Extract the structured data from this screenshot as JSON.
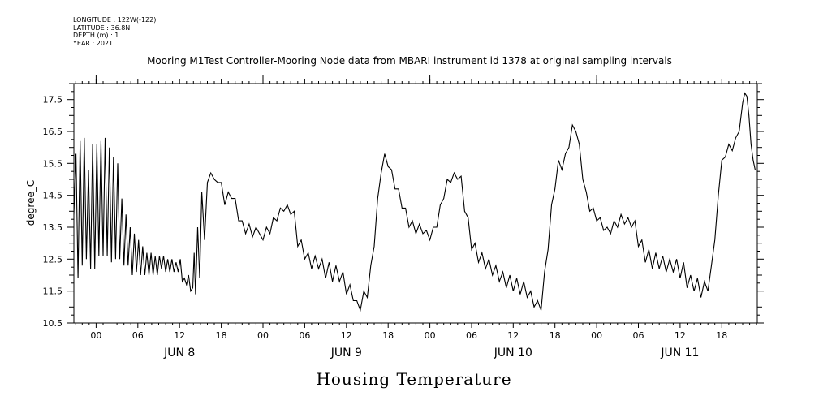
{
  "meta": {
    "longitude": "LONGITUDE : 122W(-122)",
    "latitude": "LATITUDE : 36.8N",
    "depth": "DEPTH (m) : 1",
    "year": "YEAR : 2021"
  },
  "footer_title": "Housing Temperature",
  "chart_data": {
    "type": "line",
    "title": "Mooring M1Test Controller-Mooring Node data from MBARI instrument id 1378 at original sampling intervals",
    "ylabel": "degree_C",
    "xlabel": "",
    "xlim_hours": [
      -3.2,
      95.1
    ],
    "ylim": [
      10.5,
      18.0
    ],
    "y_ticks": [
      10.5,
      11.5,
      12.5,
      13.5,
      14.5,
      15.5,
      16.5,
      17.5
    ],
    "x_ticks": [
      {
        "h": 0,
        "label": "00"
      },
      {
        "h": 6,
        "label": "06"
      },
      {
        "h": 12,
        "label": "12"
      },
      {
        "h": 18,
        "label": "18"
      },
      {
        "h": 24,
        "label": "00"
      },
      {
        "h": 30,
        "label": "06"
      },
      {
        "h": 36,
        "label": "12"
      },
      {
        "h": 42,
        "label": "18"
      },
      {
        "h": 48,
        "label": "00"
      },
      {
        "h": 54,
        "label": "06"
      },
      {
        "h": 60,
        "label": "12"
      },
      {
        "h": 66,
        "label": "18"
      },
      {
        "h": 72,
        "label": "00"
      },
      {
        "h": 78,
        "label": "06"
      },
      {
        "h": 84,
        "label": "12"
      },
      {
        "h": 90,
        "label": "18"
      }
    ],
    "day_labels": [
      {
        "h": 12,
        "label": "JUN  8"
      },
      {
        "h": 36,
        "label": "JUN  9"
      },
      {
        "h": 60,
        "label": "JUN 10"
      },
      {
        "h": 84,
        "label": "JUN 11"
      }
    ],
    "grid": false,
    "legend": "none",
    "line_color": "#000000",
    "series": [
      {
        "points": [
          [
            -3.2,
            13.9
          ],
          [
            -2.9,
            15.8
          ],
          [
            -2.6,
            11.9
          ],
          [
            -2.3,
            16.2
          ],
          [
            -2.0,
            12.3
          ],
          [
            -1.7,
            16.3
          ],
          [
            -1.4,
            12.5
          ],
          [
            -1.1,
            15.3
          ],
          [
            -0.8,
            12.2
          ],
          [
            -0.5,
            16.1
          ],
          [
            -0.2,
            12.2
          ],
          [
            0.1,
            16.1
          ],
          [
            0.4,
            12.6
          ],
          [
            0.7,
            16.2
          ],
          [
            1.0,
            12.6
          ],
          [
            1.3,
            16.3
          ],
          [
            1.6,
            12.6
          ],
          [
            1.9,
            16.0
          ],
          [
            2.2,
            12.4
          ],
          [
            2.5,
            15.7
          ],
          [
            2.8,
            12.5
          ],
          [
            3.1,
            15.5
          ],
          [
            3.4,
            12.5
          ],
          [
            3.7,
            14.4
          ],
          [
            4.0,
            12.3
          ],
          [
            4.3,
            13.9
          ],
          [
            4.6,
            12.3
          ],
          [
            4.9,
            13.5
          ],
          [
            5.2,
            12.0
          ],
          [
            5.5,
            13.3
          ],
          [
            5.8,
            12.1
          ],
          [
            6.1,
            13.1
          ],
          [
            6.4,
            12.0
          ],
          [
            6.7,
            12.9
          ],
          [
            7.0,
            12.0
          ],
          [
            7.3,
            12.7
          ],
          [
            7.6,
            12.0
          ],
          [
            7.9,
            12.7
          ],
          [
            8.2,
            12.0
          ],
          [
            8.5,
            12.6
          ],
          [
            8.8,
            12.0
          ],
          [
            9.1,
            12.6
          ],
          [
            9.4,
            12.2
          ],
          [
            9.7,
            12.6
          ],
          [
            10.0,
            12.1
          ],
          [
            10.3,
            12.5
          ],
          [
            10.6,
            12.1
          ],
          [
            10.9,
            12.5
          ],
          [
            11.2,
            12.1
          ],
          [
            11.5,
            12.4
          ],
          [
            11.8,
            12.1
          ],
          [
            12.1,
            12.5
          ],
          [
            12.4,
            11.8
          ],
          [
            12.7,
            11.9
          ],
          [
            13.0,
            11.7
          ],
          [
            13.3,
            12.0
          ],
          [
            13.6,
            11.5
          ],
          [
            13.9,
            11.6
          ],
          [
            14.1,
            12.7
          ],
          [
            14.3,
            11.4
          ],
          [
            14.6,
            13.5
          ],
          [
            14.9,
            11.9
          ],
          [
            15.2,
            14.6
          ],
          [
            15.6,
            13.1
          ],
          [
            16.0,
            14.9
          ],
          [
            16.5,
            15.2
          ],
          [
            17.0,
            15.0
          ],
          [
            17.5,
            14.9
          ],
          [
            18.0,
            14.9
          ],
          [
            18.5,
            14.2
          ],
          [
            19.0,
            14.6
          ],
          [
            19.5,
            14.4
          ],
          [
            20.0,
            14.4
          ],
          [
            20.5,
            13.7
          ],
          [
            21.0,
            13.7
          ],
          [
            21.5,
            13.3
          ],
          [
            22.0,
            13.6
          ],
          [
            22.5,
            13.2
          ],
          [
            23.0,
            13.5
          ],
          [
            23.5,
            13.3
          ],
          [
            24.0,
            13.1
          ],
          [
            24.5,
            13.5
          ],
          [
            25.0,
            13.3
          ],
          [
            25.5,
            13.8
          ],
          [
            26.0,
            13.7
          ],
          [
            26.5,
            14.1
          ],
          [
            27.0,
            14.0
          ],
          [
            27.5,
            14.2
          ],
          [
            28.0,
            13.9
          ],
          [
            28.5,
            14.0
          ],
          [
            29.0,
            12.9
          ],
          [
            29.5,
            13.1
          ],
          [
            30.0,
            12.5
          ],
          [
            30.5,
            12.7
          ],
          [
            31.0,
            12.2
          ],
          [
            31.5,
            12.6
          ],
          [
            32.0,
            12.2
          ],
          [
            32.5,
            12.5
          ],
          [
            33.0,
            11.9
          ],
          [
            33.5,
            12.4
          ],
          [
            34.0,
            11.8
          ],
          [
            34.5,
            12.3
          ],
          [
            35.0,
            11.8
          ],
          [
            35.5,
            12.1
          ],
          [
            36.0,
            11.4
          ],
          [
            36.5,
            11.7
          ],
          [
            37.0,
            11.2
          ],
          [
            37.5,
            11.2
          ],
          [
            38.0,
            10.9
          ],
          [
            38.5,
            11.5
          ],
          [
            39.0,
            11.3
          ],
          [
            39.5,
            12.3
          ],
          [
            40.0,
            12.9
          ],
          [
            40.5,
            14.4
          ],
          [
            41.0,
            15.2
          ],
          [
            41.5,
            15.8
          ],
          [
            42.0,
            15.4
          ],
          [
            42.5,
            15.3
          ],
          [
            43.0,
            14.7
          ],
          [
            43.5,
            14.7
          ],
          [
            44.0,
            14.1
          ],
          [
            44.5,
            14.1
          ],
          [
            45.0,
            13.5
          ],
          [
            45.5,
            13.7
          ],
          [
            46.0,
            13.3
          ],
          [
            46.5,
            13.6
          ],
          [
            47.0,
            13.3
          ],
          [
            47.5,
            13.4
          ],
          [
            48.0,
            13.1
          ],
          [
            48.5,
            13.5
          ],
          [
            49.0,
            13.5
          ],
          [
            49.5,
            14.2
          ],
          [
            50.0,
            14.4
          ],
          [
            50.5,
            15.0
          ],
          [
            51.0,
            14.9
          ],
          [
            51.5,
            15.2
          ],
          [
            52.0,
            15.0
          ],
          [
            52.5,
            15.1
          ],
          [
            53.0,
            14.0
          ],
          [
            53.5,
            13.8
          ],
          [
            54.0,
            12.8
          ],
          [
            54.5,
            13.0
          ],
          [
            55.0,
            12.4
          ],
          [
            55.5,
            12.7
          ],
          [
            56.0,
            12.2
          ],
          [
            56.5,
            12.5
          ],
          [
            57.0,
            12.0
          ],
          [
            57.5,
            12.3
          ],
          [
            58.0,
            11.8
          ],
          [
            58.5,
            12.1
          ],
          [
            59.0,
            11.6
          ],
          [
            59.5,
            12.0
          ],
          [
            60.0,
            11.5
          ],
          [
            60.5,
            11.9
          ],
          [
            61.0,
            11.4
          ],
          [
            61.5,
            11.8
          ],
          [
            62.0,
            11.3
          ],
          [
            62.5,
            11.5
          ],
          [
            63.0,
            11.0
          ],
          [
            63.5,
            11.2
          ],
          [
            64.0,
            10.9
          ],
          [
            64.5,
            12.1
          ],
          [
            65.0,
            12.8
          ],
          [
            65.5,
            14.2
          ],
          [
            66.0,
            14.7
          ],
          [
            66.5,
            15.6
          ],
          [
            67.0,
            15.3
          ],
          [
            67.5,
            15.8
          ],
          [
            68.0,
            16.0
          ],
          [
            68.5,
            16.7
          ],
          [
            69.0,
            16.5
          ],
          [
            69.5,
            16.1
          ],
          [
            70.0,
            15.0
          ],
          [
            70.5,
            14.6
          ],
          [
            71.0,
            14.0
          ],
          [
            71.5,
            14.1
          ],
          [
            72.0,
            13.7
          ],
          [
            72.5,
            13.8
          ],
          [
            73.0,
            13.4
          ],
          [
            73.5,
            13.5
          ],
          [
            74.0,
            13.3
          ],
          [
            74.5,
            13.7
          ],
          [
            75.0,
            13.5
          ],
          [
            75.5,
            13.9
          ],
          [
            76.0,
            13.6
          ],
          [
            76.5,
            13.8
          ],
          [
            77.0,
            13.5
          ],
          [
            77.5,
            13.7
          ],
          [
            78.0,
            12.9
          ],
          [
            78.5,
            13.1
          ],
          [
            79.0,
            12.4
          ],
          [
            79.5,
            12.8
          ],
          [
            80.0,
            12.2
          ],
          [
            80.5,
            12.7
          ],
          [
            81.0,
            12.2
          ],
          [
            81.5,
            12.6
          ],
          [
            82.0,
            12.1
          ],
          [
            82.5,
            12.5
          ],
          [
            83.0,
            12.1
          ],
          [
            83.5,
            12.5
          ],
          [
            84.0,
            11.9
          ],
          [
            84.5,
            12.4
          ],
          [
            85.0,
            11.6
          ],
          [
            85.5,
            12.0
          ],
          [
            86.0,
            11.5
          ],
          [
            86.5,
            11.9
          ],
          [
            87.0,
            11.3
          ],
          [
            87.5,
            11.8
          ],
          [
            88.0,
            11.5
          ],
          [
            88.5,
            12.3
          ],
          [
            89.0,
            13.1
          ],
          [
            89.5,
            14.5
          ],
          [
            90.0,
            15.6
          ],
          [
            90.5,
            15.7
          ],
          [
            91.0,
            16.1
          ],
          [
            91.5,
            15.9
          ],
          [
            92.0,
            16.3
          ],
          [
            92.5,
            16.5
          ],
          [
            93.0,
            17.4
          ],
          [
            93.3,
            17.7
          ],
          [
            93.6,
            17.6
          ],
          [
            93.9,
            17.0
          ],
          [
            94.2,
            16.1
          ],
          [
            94.5,
            15.6
          ],
          [
            94.8,
            15.3
          ]
        ]
      }
    ]
  }
}
